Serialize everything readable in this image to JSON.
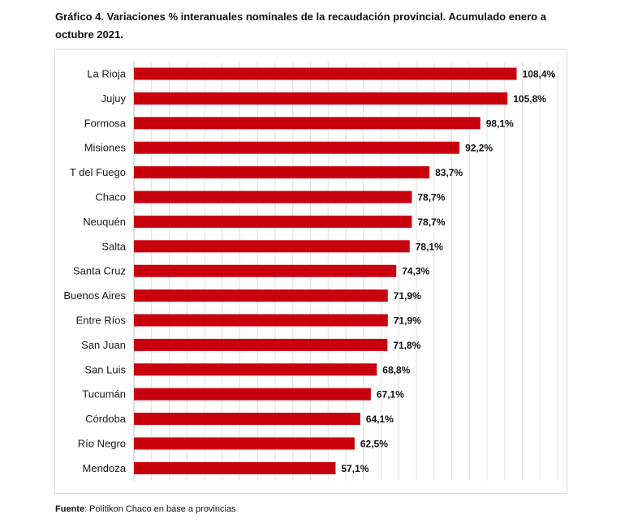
{
  "title": "Gráfico 4. Variaciones % interanuales nominales de la recaudación provincial. Acumulado enero a octubre 2021.",
  "source": {
    "label": "Fuente",
    "text": ": Politikon Chaco en base a provincias"
  },
  "colors": {
    "bar": "#c8000e",
    "grid": "#e0e0e0"
  },
  "chart_data": {
    "type": "bar",
    "orientation": "horizontal",
    "categories": [
      "La Rioja",
      "Jujuy",
      "Formosa",
      "Misiones",
      "T del Fuego",
      "Chaco",
      "Neuquén",
      "Salta",
      "Santa Cruz",
      "Buenos Aires",
      "Entre Ríos",
      "San Juan",
      "San Luis",
      "Tucumán",
      "Córdoba",
      "Río Negro",
      "Mendoza"
    ],
    "values": [
      108.4,
      105.8,
      98.1,
      92.2,
      83.7,
      78.7,
      78.7,
      78.1,
      74.3,
      71.9,
      71.9,
      71.8,
      68.8,
      67.1,
      64.1,
      62.5,
      57.1
    ],
    "value_labels": [
      "108,4%",
      "105,8%",
      "98,1%",
      "92,2%",
      "83,7%",
      "78,7%",
      "78,7%",
      "78,1%",
      "74,3%",
      "71,9%",
      "71,9%",
      "71,8%",
      "68,8%",
      "67,1%",
      "64,1%",
      "62,5%",
      "57,1%"
    ],
    "xlim": [
      0,
      120
    ],
    "grid": true,
    "legend": "none"
  }
}
